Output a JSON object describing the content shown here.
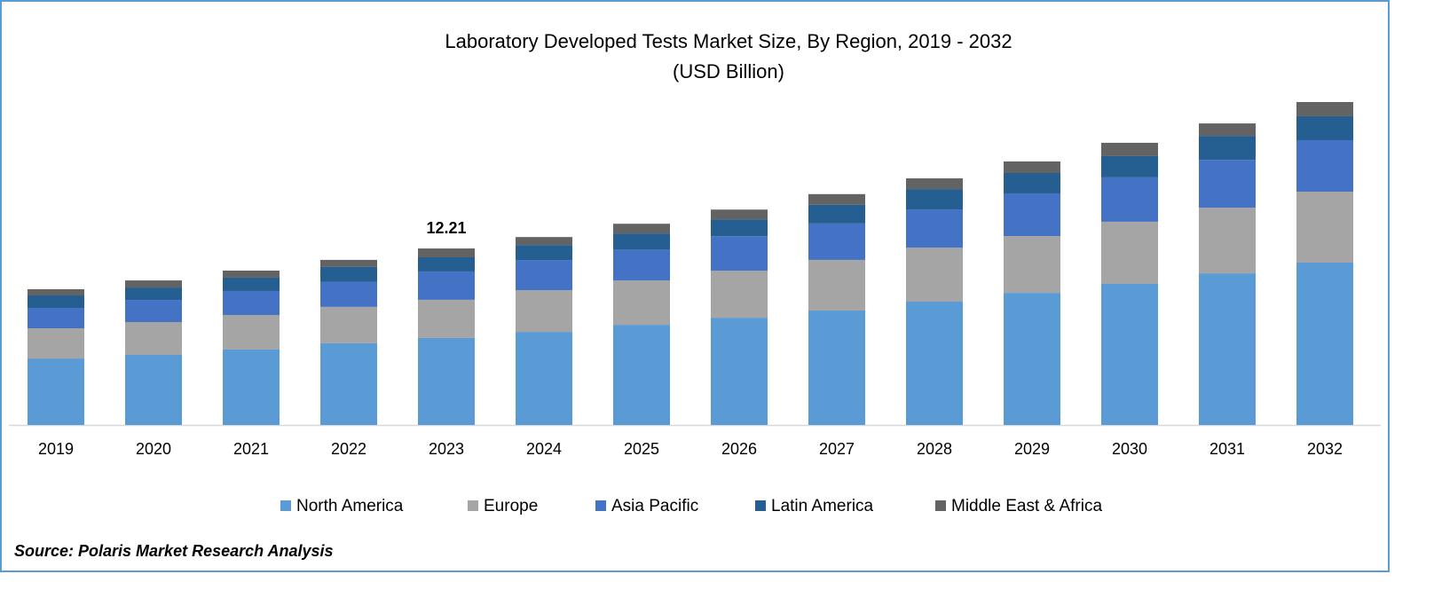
{
  "chart_data": {
    "type": "stacked_bar",
    "title": "Laboratory Developed Tests Market  Size, By Region, 2019 - 2032",
    "subtitle": "(USD Billion)",
    "categories": [
      "2019",
      "2020",
      "2021",
      "2022",
      "2023",
      "2024",
      "2025",
      "2026",
      "2027",
      "2028",
      "2029",
      "2030",
      "2031",
      "2032"
    ],
    "series": [
      {
        "name": "North America",
        "color": "#5b9bd5",
        "values": [
          4.6,
          4.85,
          5.22,
          5.65,
          6.02,
          6.44,
          6.93,
          7.42,
          7.92,
          8.53,
          9.14,
          9.76,
          10.49,
          11.23
        ]
      },
      {
        "name": "Europe",
        "color": "#a5a5a5",
        "values": [
          2.09,
          2.27,
          2.39,
          2.52,
          2.64,
          2.88,
          3.07,
          3.25,
          3.5,
          3.74,
          3.93,
          4.3,
          4.54,
          4.91
        ]
      },
      {
        "name": "Asia Pacific",
        "color": "#4472c4",
        "values": [
          1.41,
          1.53,
          1.66,
          1.72,
          1.96,
          2.09,
          2.15,
          2.39,
          2.52,
          2.64,
          2.95,
          3.07,
          3.31,
          3.56
        ]
      },
      {
        "name": "Latin America",
        "color": "#255e91",
        "values": [
          0.86,
          0.86,
          0.92,
          1.04,
          0.98,
          1.04,
          1.1,
          1.17,
          1.29,
          1.41,
          1.41,
          1.47,
          1.66,
          1.66
        ]
      },
      {
        "name": "Middle East & Africa",
        "color": "#636363",
        "values": [
          0.43,
          0.49,
          0.49,
          0.49,
          0.61,
          0.55,
          0.67,
          0.67,
          0.74,
          0.74,
          0.8,
          0.92,
          0.86,
          0.98
        ]
      }
    ],
    "annotations": [
      {
        "category": "2023",
        "value": 12.21
      }
    ],
    "source": "Source: Polaris Market Research Analysis"
  }
}
